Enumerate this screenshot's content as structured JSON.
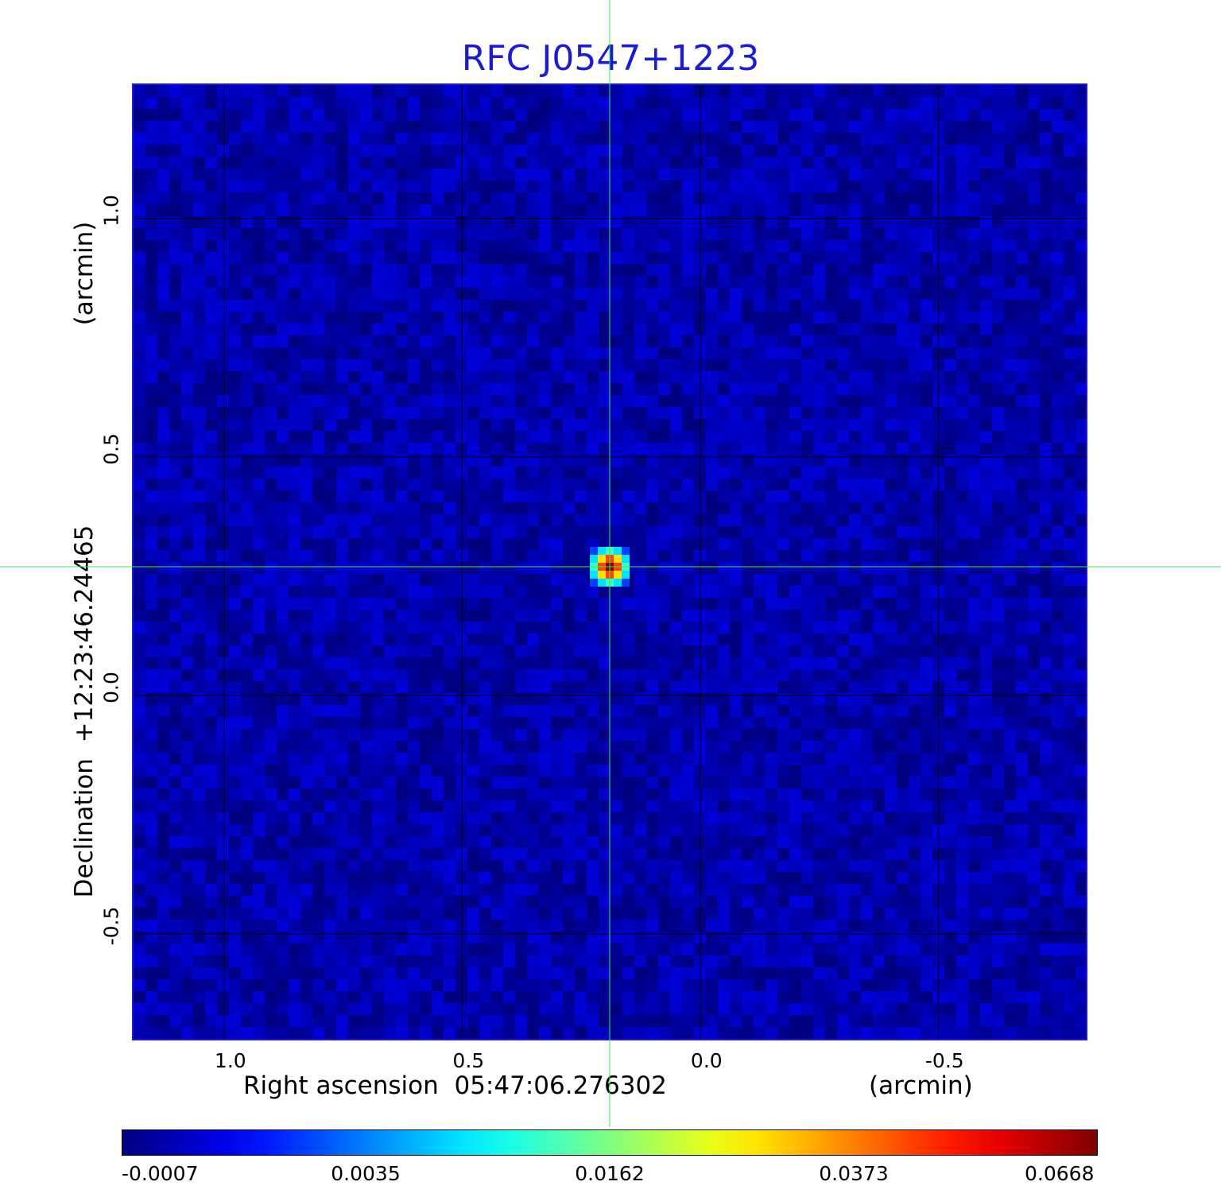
{
  "chart_data": {
    "type": "heatmap",
    "title": "RFC J0547+1223",
    "xlabel": "Right ascension  05:47:06.276302",
    "xunit": "(arcmin)",
    "ylabel": "Declination  +12:23:46.24465",
    "yunit": "(arcmin)",
    "x_range": [
      1.19,
      -0.81
    ],
    "y_range": [
      -0.72,
      1.28
    ],
    "xticks": [
      {
        "value": 1.0,
        "label": "1.0"
      },
      {
        "value": 0.5,
        "label": "0.5"
      },
      {
        "value": 0.0,
        "label": "0.0"
      },
      {
        "value": -0.5,
        "label": "-0.5"
      }
    ],
    "yticks": [
      {
        "value": 1.0,
        "label": "1.0"
      },
      {
        "value": 0.5,
        "label": "0.5"
      },
      {
        "value": 0.0,
        "label": "0.0"
      },
      {
        "value": -0.5,
        "label": "-0.5"
      }
    ],
    "grid": true,
    "source_peak": {
      "x": 0.19,
      "y": 0.27,
      "value": 0.0668
    },
    "crosshair": {
      "x": 0.19,
      "y": 0.27
    },
    "colormap": "jet",
    "colorbar": {
      "ticks": [
        "-0.0007",
        "0.0035",
        "0.0162",
        "0.0373",
        "0.0668"
      ],
      "min": -0.0007,
      "max": 0.0668
    },
    "background_value": 0.0
  },
  "colors": {
    "title": "#1a1adc",
    "crosshair": "#33ee55",
    "grid": "#000000",
    "background": "#0f3df0"
  }
}
